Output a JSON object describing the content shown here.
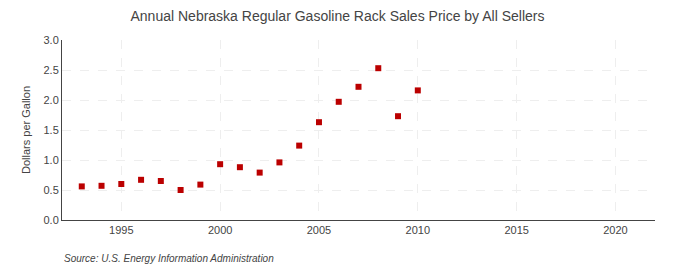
{
  "chart_data": {
    "type": "scatter",
    "title": "Annual Nebraska Regular Gasoline Rack Sales Price by All Sellers",
    "ylabel": "Dollars per Gallon",
    "annotations": [
      "Source: U.S. Energy Information Administration"
    ],
    "x": [
      1993,
      1994,
      1995,
      1996,
      1997,
      1998,
      1999,
      2000,
      2001,
      2002,
      2003,
      2004,
      2005,
      2006,
      2007,
      2008,
      2009,
      2010
    ],
    "values": [
      0.56,
      0.57,
      0.6,
      0.67,
      0.65,
      0.5,
      0.59,
      0.93,
      0.88,
      0.79,
      0.96,
      1.24,
      1.63,
      1.97,
      2.22,
      2.53,
      1.73,
      2.16
    ],
    "color": "#bb0000",
    "marker": "square",
    "xlim": [
      1992,
      2022
    ],
    "ylim": [
      0.0,
      3.0
    ],
    "xticks": [
      1995,
      2000,
      2005,
      2010,
      2015,
      2020
    ],
    "yticks": [
      {
        "value": 0.0,
        "label": "0.0"
      },
      0.5,
      {
        "value": 1.0,
        "label": "1.0"
      },
      1.5,
      {
        "value": 2.0,
        "label": "2.0"
      },
      2.5,
      {
        "value": 3.0,
        "label": "3.0"
      }
    ],
    "grid": true
  }
}
